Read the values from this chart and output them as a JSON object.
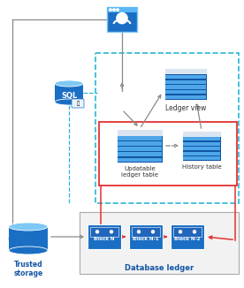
{
  "bg_color": "#ffffff",
  "cyan_dash": "#29b6d4",
  "red": "#e53030",
  "gray_arrow": "#8a8a8a",
  "dark_blue": "#1155a5",
  "mid_blue": "#1a6fc4",
  "light_blue": "#4da6e8",
  "lighter_blue": "#7ec8f5",
  "table_header": "#c8e8fa",
  "block_inner": "#2266bb",
  "trusted_body": "#1a6fc4",
  "trusted_light": "#4da6e8",
  "trusted_lighter": "#7ec8f5",
  "user_bg": "#1a6fc4",
  "user_border": "#7ec8f5",
  "label_blue": "#1155a5",
  "label_dark": "#333333",
  "labels": {
    "ledger_view": "Ledger view",
    "updatable": "Updatable\nledger table",
    "history": "History table",
    "trusted": "Trusted\nstorage",
    "db_ledger": "Database ledger",
    "block_n": "Block N",
    "block_n1": "Block N-1",
    "block_n2": "Block N-2"
  }
}
